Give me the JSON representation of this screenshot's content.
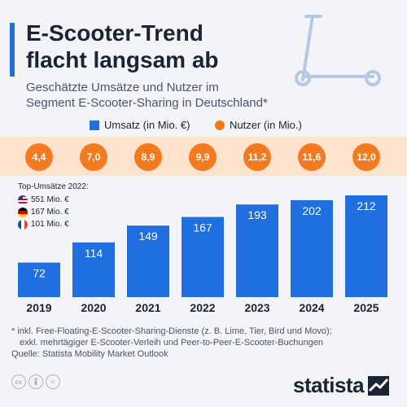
{
  "header": {
    "title": "E-Scooter-Trend\nflacht langsam ab",
    "subtitle": "Geschätzte Umsätze und Nutzer im\nSegment E-Scooter-Sharing in Deutschland*"
  },
  "legend": {
    "revenue": "Umsatz (in Mio. €)",
    "users": "Nutzer (in Mio.)"
  },
  "colors": {
    "bar": "#1f6fe0",
    "user_dot": "#f47a20",
    "user_band": "#fde3cd"
  },
  "top_revenue": {
    "title": "Top-Umsätze 2022:",
    "items": [
      {
        "flag": "us-flag-icon",
        "value": "551 Mio. €"
      },
      {
        "flag": "germany-flag-icon",
        "value": "167 Mio. €"
      },
      {
        "flag": "france-flag-icon",
        "value": "101 Mio. €"
      }
    ]
  },
  "chart_data": {
    "type": "bar",
    "categories": [
      "2019",
      "2020",
      "2021",
      "2022",
      "2023",
      "2024",
      "2025"
    ],
    "series": [
      {
        "name": "Umsatz (in Mio. €)",
        "values": [
          72,
          114,
          149,
          167,
          193,
          202,
          212
        ]
      },
      {
        "name": "Nutzer (in Mio.)",
        "values": [
          4.4,
          7.0,
          8.9,
          9.9,
          11.2,
          11.6,
          12.0
        ]
      }
    ],
    "value_labels": [
      "72",
      "114",
      "149",
      "167",
      "193",
      "202",
      "212"
    ],
    "user_labels": [
      "4,4",
      "7,0",
      "8,9",
      "9,9",
      "11,2",
      "11,6",
      "12,0"
    ],
    "ylim": [
      0,
      212
    ],
    "grid": false,
    "legend_position": "top"
  },
  "footnote": {
    "line1": "* inkl. Free-Floating-E-Scooter-Sharing-Dienste (z. B. Lime, Tier, Bird und Movo);",
    "line2": "exkl. mehrtägiger E-Scooter-Verleih und Peer-to-Peer-E-Scooter-Buchungen",
    "source": "Quelle: Statista Mobility Market Outlook"
  },
  "license_icons": [
    "cc-icon",
    "person-icon",
    "equals-icon"
  ],
  "brand": {
    "name": "statista"
  }
}
